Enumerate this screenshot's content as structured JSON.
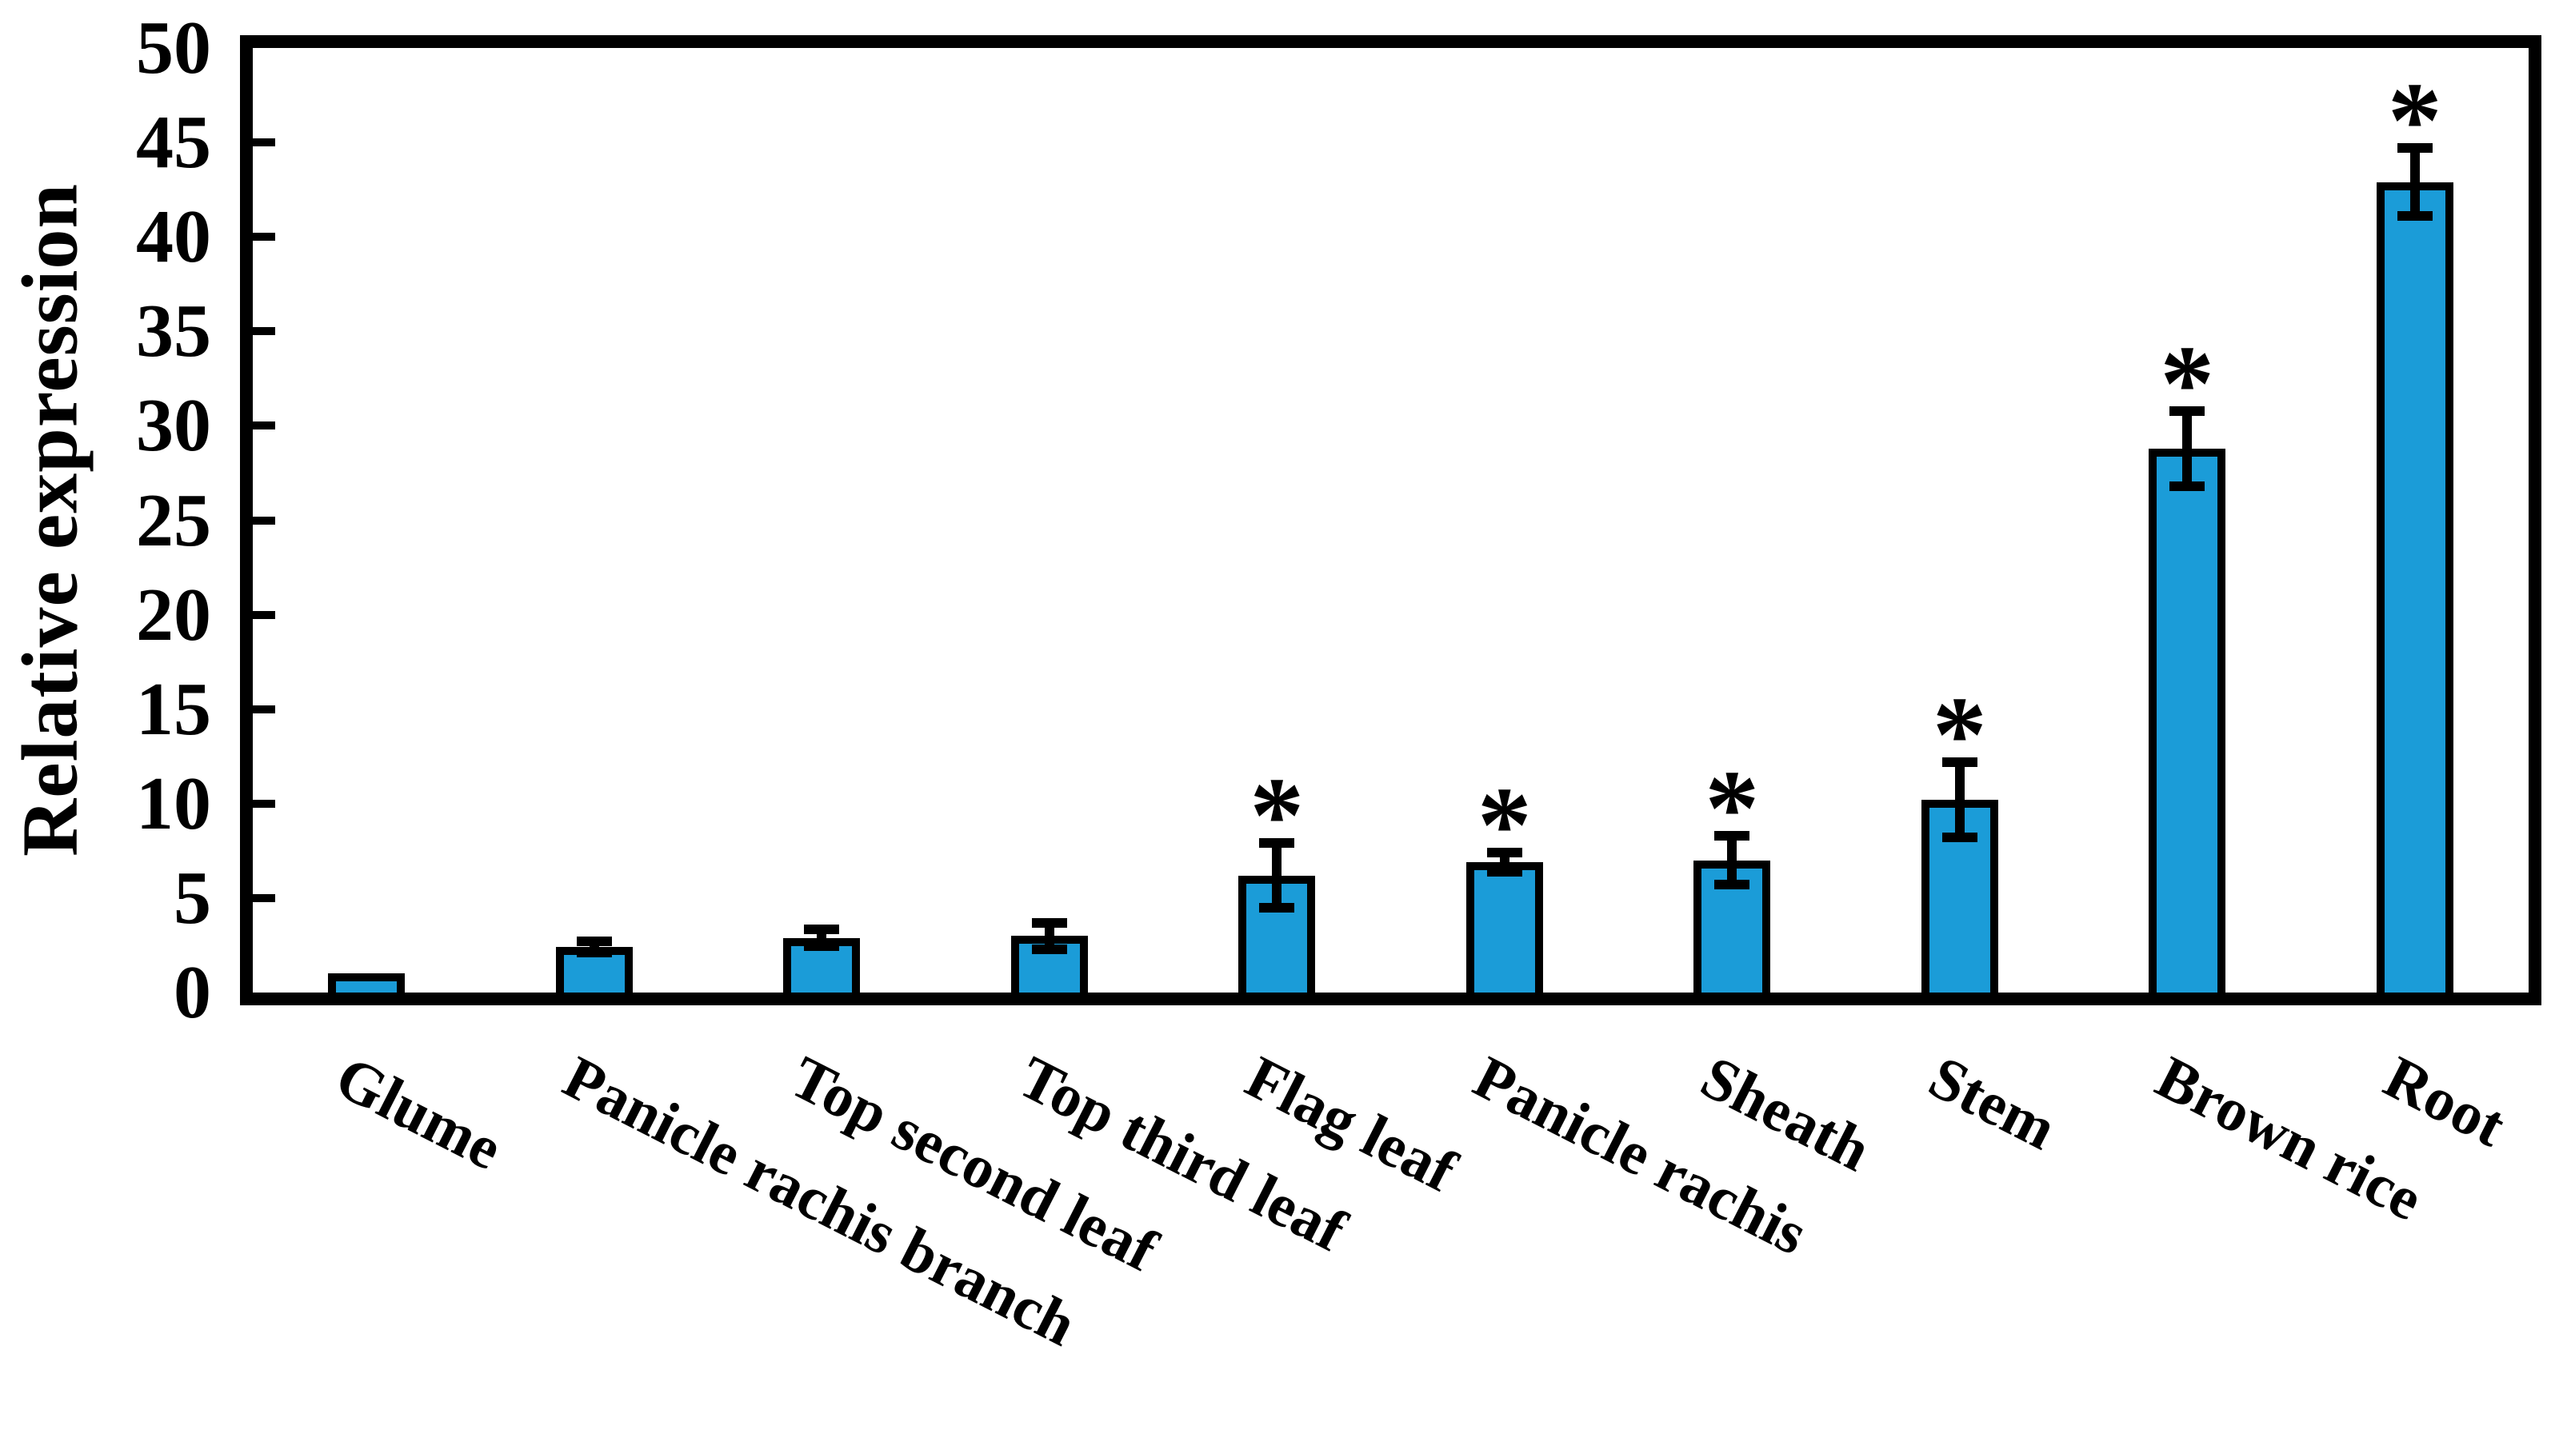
{
  "figure": {
    "background_color": "#ffffff",
    "bar_fill_color": "#1B9CD8",
    "bar_border_color": "#000000",
    "axis_color": "#000000",
    "text_color": "#000000",
    "significance_marker": "*"
  },
  "chart_data": {
    "type": "bar",
    "title": "",
    "xlabel": "",
    "ylabel": "Relative expression",
    "ylim": [
      0,
      50
    ],
    "yticks": [
      0,
      5,
      10,
      15,
      20,
      25,
      30,
      35,
      40,
      45,
      50
    ],
    "grid": false,
    "legend": false,
    "categories": [
      "Glume",
      "Panicle rachis branch",
      "Top second leaf",
      "Top third leaf",
      "Flag leaf",
      "Panicle rachis",
      "Sheath",
      "Stem",
      "Brown rice",
      "Root"
    ],
    "values": [
      1.0,
      2.4,
      2.9,
      3.0,
      6.2,
      6.9,
      7.0,
      10.2,
      28.8,
      42.9
    ],
    "errors": [
      0,
      0.3,
      0.45,
      0.7,
      1.7,
      0.5,
      1.3,
      2.0,
      2.0,
      1.8
    ],
    "significant": [
      false,
      false,
      false,
      false,
      true,
      true,
      true,
      true,
      true,
      true
    ]
  }
}
